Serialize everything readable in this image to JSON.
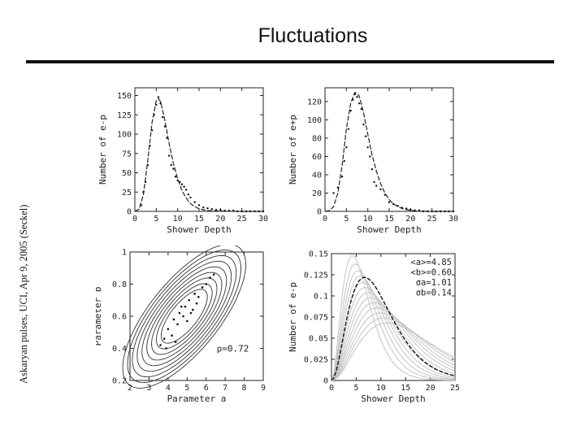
{
  "page": {
    "title": "Fluctuations",
    "side_caption": "Askaryan pulses, UCI, Apr 9, 2005 (Seckel)"
  },
  "chart_data": [
    {
      "type": "scatter",
      "xlabel": "Shower Depth",
      "ylabel": "Number of e-p",
      "xlim": [
        0,
        30
      ],
      "ylim": [
        0,
        160
      ],
      "xticks": [
        0,
        5,
        10,
        15,
        20,
        25,
        30
      ],
      "yticks": [
        0,
        25,
        50,
        75,
        100,
        125,
        150
      ],
      "curve": {
        "x": [
          0,
          1,
          2,
          3,
          4,
          5,
          5.5,
          6,
          7,
          8,
          9,
          10,
          11,
          12,
          13,
          14,
          15,
          16,
          17,
          18,
          20,
          22,
          25,
          28,
          30
        ],
        "y": [
          0,
          3,
          22,
          65,
          115,
          143,
          146,
          142,
          118,
          88,
          62,
          42,
          27,
          17,
          10,
          6,
          3.5,
          2,
          1.2,
          0.7,
          0.3,
          0.1,
          0,
          0,
          0
        ]
      },
      "points": {
        "x": [
          1.5,
          2,
          2.5,
          3,
          3.5,
          4,
          4.5,
          5,
          5.5,
          6,
          6.5,
          7,
          7.5,
          8,
          8.5,
          9,
          9.5,
          10,
          10.5,
          11,
          11.5,
          12,
          12.5,
          13,
          14,
          15,
          16,
          17,
          18,
          19,
          20,
          21,
          22,
          23,
          24,
          25,
          26,
          27,
          28,
          29,
          30
        ],
        "y": [
          8,
          25,
          38,
          60,
          85,
          105,
          125,
          138,
          148,
          140,
          122,
          110,
          95,
          72,
          60,
          55,
          45,
          40,
          38,
          35,
          32,
          28,
          22,
          18,
          12,
          8,
          5,
          4,
          3,
          2,
          2,
          1,
          1,
          1,
          0,
          0,
          0,
          0,
          0,
          0,
          0
        ]
      }
    },
    {
      "type": "scatter",
      "xlabel": "Shower Depth",
      "ylabel": "Number of e+p",
      "xlim": [
        0,
        30
      ],
      "ylim": [
        0,
        135
      ],
      "xticks": [
        0,
        5,
        10,
        15,
        20,
        25,
        30
      ],
      "yticks": [
        0,
        20,
        40,
        60,
        80,
        100,
        120
      ],
      "curve": {
        "x": [
          0,
          1,
          2,
          3,
          4,
          5,
          6,
          7,
          8,
          9,
          10,
          11,
          12,
          13,
          14,
          15,
          16,
          18,
          20,
          22,
          25,
          30
        ],
        "y": [
          0,
          1,
          5,
          20,
          50,
          90,
          118,
          130,
          126,
          108,
          84,
          62,
          44,
          30,
          20,
          13,
          8,
          3,
          1,
          0.3,
          0,
          0
        ]
      },
      "points": {
        "x": [
          2,
          3,
          4,
          4.5,
          5,
          5.5,
          6,
          6.5,
          7,
          7.5,
          8,
          8.5,
          9,
          9.5,
          10,
          10.5,
          11,
          11.5,
          12,
          13,
          14,
          15,
          16,
          17,
          18,
          19,
          20,
          21,
          22,
          23,
          24,
          25,
          26,
          27,
          28,
          29,
          30
        ],
        "y": [
          20,
          26,
          38,
          55,
          70,
          90,
          110,
          122,
          128,
          125,
          118,
          112,
          95,
          82,
          70,
          60,
          46,
          32,
          28,
          24,
          18,
          10,
          8,
          6,
          4,
          3,
          2,
          1,
          1,
          0,
          0,
          0,
          0,
          0,
          0,
          0,
          0
        ]
      }
    },
    {
      "type": "scatter",
      "xlabel": "Parameter a",
      "ylabel": "Parameter b",
      "xlim": [
        2,
        9
      ],
      "ylim": [
        0.2,
        1.0
      ],
      "xticks": [
        2,
        3,
        4,
        5,
        6,
        7,
        8,
        9
      ],
      "yticks": [
        0.2,
        0.4,
        0.6,
        0.8,
        1.0
      ],
      "ytick_labels": [
        "0.2",
        "0.4",
        "0.6",
        "0.8",
        "1"
      ],
      "contours": {
        "center": [
          4.85,
          0.6
        ],
        "sigma": [
          1.01,
          0.14
        ],
        "rho": 0.72,
        "levels": [
          1.2,
          1.45,
          1.7,
          1.95,
          2.2,
          2.45,
          2.7,
          2.95,
          3.2
        ]
      },
      "points": {
        "x": [
          3.6,
          3.8,
          4.0,
          4.2,
          4.3,
          4.5,
          4.6,
          4.8,
          4.9,
          5.0,
          5.1,
          5.3,
          5.4,
          5.5,
          5.6,
          5.8,
          6.0,
          6.2,
          4.4,
          4.7,
          5.2,
          3.9,
          6.4
        ],
        "y": [
          0.42,
          0.46,
          0.52,
          0.48,
          0.58,
          0.55,
          0.62,
          0.6,
          0.66,
          0.57,
          0.7,
          0.64,
          0.74,
          0.68,
          0.72,
          0.78,
          0.8,
          0.84,
          0.44,
          0.66,
          0.62,
          0.4,
          0.86
        ]
      },
      "annotation": "ρ=0.72"
    },
    {
      "type": "line",
      "xlabel": "Shower Depth",
      "ylabel": "Number of e-p",
      "xlim": [
        0,
        25
      ],
      "ylim": [
        0,
        0.15
      ],
      "xticks": [
        0,
        5,
        10,
        15,
        20,
        25
      ],
      "yticks": [
        0,
        0.025,
        0.05,
        0.075,
        0.1,
        0.125,
        0.15
      ],
      "ytick_labels": [
        "0",
        "0.025",
        "0.05",
        "0.075",
        "0.1",
        "0.125",
        "0.15"
      ],
      "family": [
        {
          "peak_x": 4.2,
          "peak_y": 0.148
        },
        {
          "peak_x": 4.8,
          "peak_y": 0.138
        },
        {
          "peak_x": 5.3,
          "peak_y": 0.13
        },
        {
          "peak_x": 5.8,
          "peak_y": 0.124
        },
        {
          "peak_x": 6.3,
          "peak_y": 0.116
        },
        {
          "peak_x": 6.8,
          "peak_y": 0.11
        },
        {
          "peak_x": 7.4,
          "peak_y": 0.104
        },
        {
          "peak_x": 8.0,
          "peak_y": 0.098
        },
        {
          "peak_x": 8.6,
          "peak_y": 0.092
        },
        {
          "peak_x": 9.2,
          "peak_y": 0.086
        },
        {
          "peak_x": 9.9,
          "peak_y": 0.08
        },
        {
          "peak_x": 10.6,
          "peak_y": 0.074
        },
        {
          "peak_x": 11.3,
          "peak_y": 0.068
        }
      ],
      "mean_curve": {
        "peak_x": 6.7,
        "peak_y": 0.122
      },
      "annotations": [
        "<a>=4.85",
        "<b>=0.60",
        "σa=1.01",
        "σb=0.14"
      ]
    }
  ]
}
